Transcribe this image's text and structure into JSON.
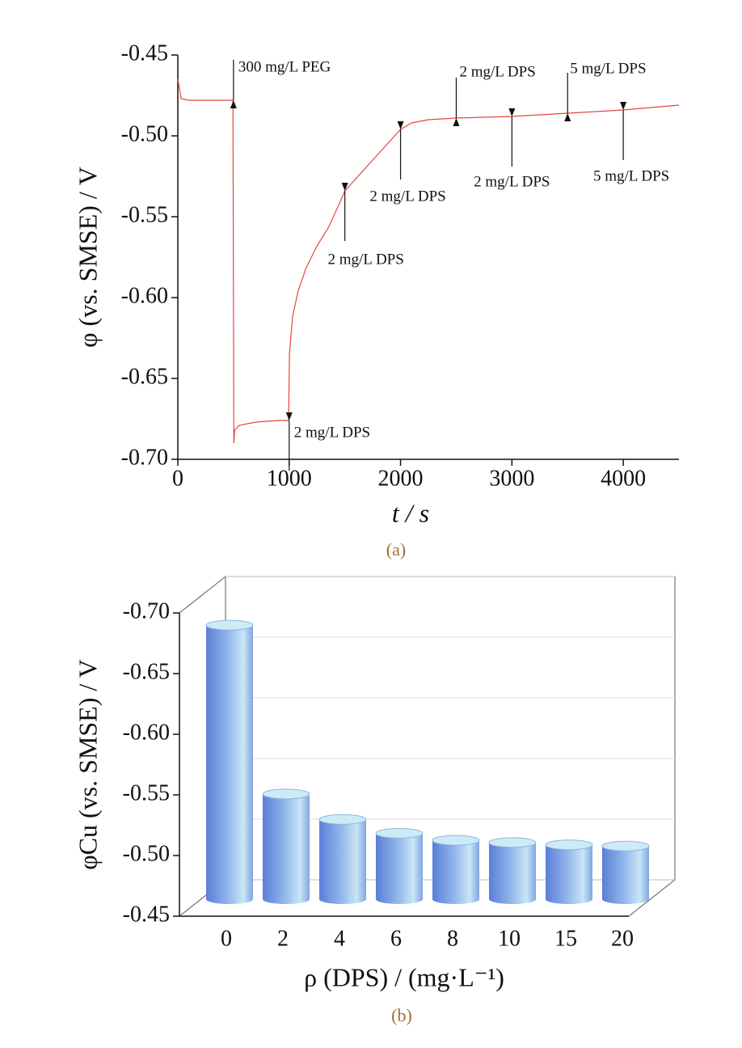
{
  "chart_data": [
    {
      "type": "line",
      "x": [
        0,
        30,
        100,
        300,
        495,
        503,
        510,
        550,
        700,
        900,
        995,
        1002,
        1030,
        1080,
        1150,
        1250,
        1350,
        1450,
        1500,
        1750,
        2000,
        2100,
        2250,
        2500,
        3000,
        3500,
        4000,
        4500
      ],
      "values": [
        -0.465,
        -0.477,
        -0.478,
        -0.478,
        -0.478,
        -0.69,
        -0.682,
        -0.679,
        -0.677,
        -0.676,
        -0.676,
        -0.635,
        -0.612,
        -0.596,
        -0.582,
        -0.568,
        -0.557,
        -0.542,
        -0.534,
        -0.515,
        -0.496,
        -0.492,
        -0.49,
        -0.489,
        -0.488,
        -0.486,
        -0.484,
        -0.481
      ],
      "color": "#e5463f",
      "xlim": [
        0,
        4500
      ],
      "xticks": [
        0,
        1000,
        2000,
        3000,
        4000
      ],
      "ylim": [
        -0.7,
        -0.45
      ],
      "yticks": [
        -0.45,
        {
          "value": -0.5,
          "label": "-0.50"
        },
        -0.55,
        {
          "value": -0.6,
          "label": "-0.60"
        },
        -0.65,
        {
          "value": -0.7,
          "label": "-0.70"
        }
      ],
      "x_label": "t / s",
      "y_label": "φ (vs. SMSE) / V",
      "caption": "(a)",
      "annotations": [
        {
          "text": "300 mg/L PEG",
          "x": 500,
          "y": -0.478,
          "direction": "down"
        },
        {
          "text": "2 mg/L DPS",
          "x": 1000,
          "y": -0.676,
          "direction": "up"
        },
        {
          "text": "2 mg/L DPS",
          "x": 1500,
          "y": -0.534,
          "direction": "up"
        },
        {
          "text": "2 mg/L DPS",
          "x": 2000,
          "y": -0.496,
          "direction": "up"
        },
        {
          "text": "2 mg/L DPS",
          "x": 2500,
          "y": -0.489,
          "direction": "down"
        },
        {
          "text": "2 mg/L DPS",
          "x": 3000,
          "y": -0.488,
          "direction": "up"
        },
        {
          "text": "5 mg/L DPS",
          "x": 3500,
          "y": -0.486,
          "direction": "down"
        },
        {
          "text": "5 mg/L DPS",
          "x": 4000,
          "y": -0.484,
          "direction": "up"
        }
      ]
    },
    {
      "type": "bar3d",
      "categories": [
        "0",
        "2",
        "4",
        "6",
        "8",
        "10",
        "15",
        "20"
      ],
      "values": [
        -0.687,
        -0.541,
        -0.519,
        -0.507,
        -0.501,
        -0.499,
        -0.497,
        -0.496
      ],
      "color": "#6f96e0",
      "ylim": [
        -0.45,
        -0.7
      ],
      "yticks": [
        {
          "value": -0.7,
          "label": "-0.70"
        },
        -0.65,
        {
          "value": -0.6,
          "label": "-0.60"
        },
        -0.55,
        {
          "value": -0.5,
          "label": "-0.50"
        },
        -0.45
      ],
      "grid": true,
      "x_label": "ρ (DPS) / (mg·L⁻¹)",
      "y_label": "φCu (vs. SMSE) / V",
      "caption": "(b)"
    }
  ]
}
